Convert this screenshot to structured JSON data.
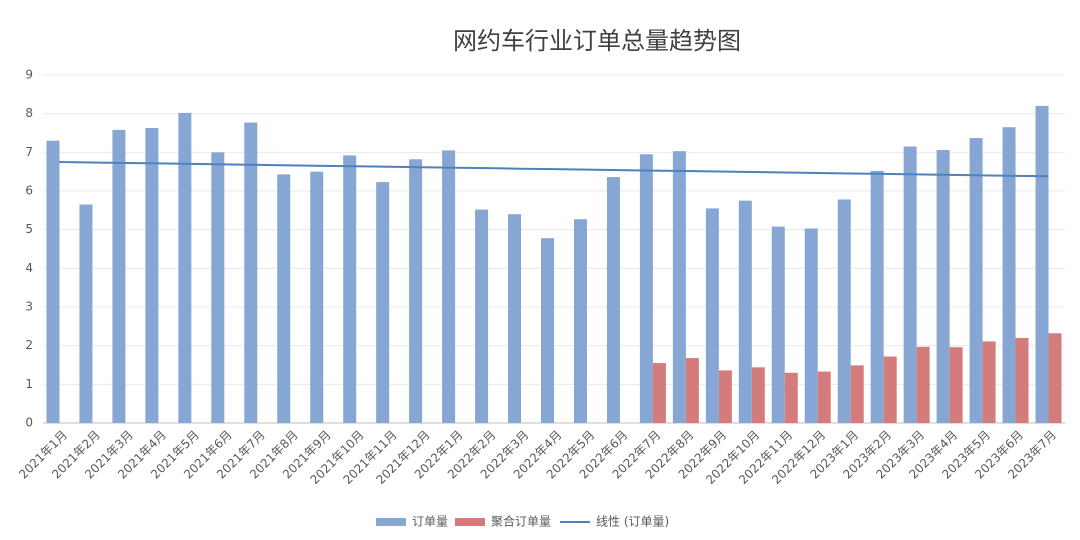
{
  "chart_data": {
    "type": "bar",
    "title": "网约车行业订单总量趋势图",
    "categories": [
      "2021年1月",
      "2021年2月",
      "2021年3月",
      "2021年4月",
      "2021年5月",
      "2021年6月",
      "2021年7月",
      "2021年8月",
      "2021年9月",
      "2021年10月",
      "2021年11月",
      "2021年12月",
      "2022年1月",
      "2022年2月",
      "2022年3月",
      "2022年4月",
      "2022年5月",
      "2022年6月",
      "2022年7月",
      "2022年8月",
      "2022年9月",
      "2022年10月",
      "2022年11月",
      "2022年12月",
      "2023年1月",
      "2023年2月",
      "2023年3月",
      "2023年4月",
      "2023年5月",
      "2023年6月",
      "2023年7月"
    ],
    "series": [
      {
        "name": "订单量",
        "type": "bar",
        "color": "#86a6d4",
        "values": [
          7.3,
          5.65,
          7.58,
          7.63,
          8.02,
          7.0,
          7.77,
          6.43,
          6.5,
          6.92,
          6.23,
          6.82,
          7.05,
          5.52,
          5.4,
          4.78,
          5.27,
          6.36,
          6.95,
          7.03,
          5.55,
          5.75,
          5.08,
          5.03,
          5.78,
          6.52,
          7.15,
          7.06,
          7.37,
          7.65,
          8.2
        ]
      },
      {
        "name": "聚合订单量",
        "type": "bar",
        "color": "#d47c7c",
        "values": [
          null,
          null,
          null,
          null,
          null,
          null,
          null,
          null,
          null,
          null,
          null,
          null,
          null,
          null,
          null,
          null,
          null,
          null,
          1.55,
          1.68,
          1.36,
          1.44,
          1.3,
          1.33,
          1.49,
          1.72,
          1.97,
          1.96,
          2.11,
          2.2,
          2.32
        ]
      },
      {
        "name": "线性 (订单量)",
        "type": "line",
        "color": "#4f81bd",
        "values": [
          6.75,
          6.738,
          6.725,
          6.713,
          6.701,
          6.688,
          6.676,
          6.664,
          6.651,
          6.639,
          6.627,
          6.614,
          6.602,
          6.59,
          6.577,
          6.565,
          6.553,
          6.54,
          6.528,
          6.516,
          6.503,
          6.491,
          6.479,
          6.466,
          6.454,
          6.442,
          6.429,
          6.417,
          6.405,
          6.392,
          6.38
        ]
      }
    ],
    "ylim": [
      0,
      9
    ],
    "yticks": [
      0,
      1,
      2,
      3,
      4,
      5,
      6,
      7,
      8,
      9
    ],
    "grid": true,
    "legend": "bottom"
  }
}
